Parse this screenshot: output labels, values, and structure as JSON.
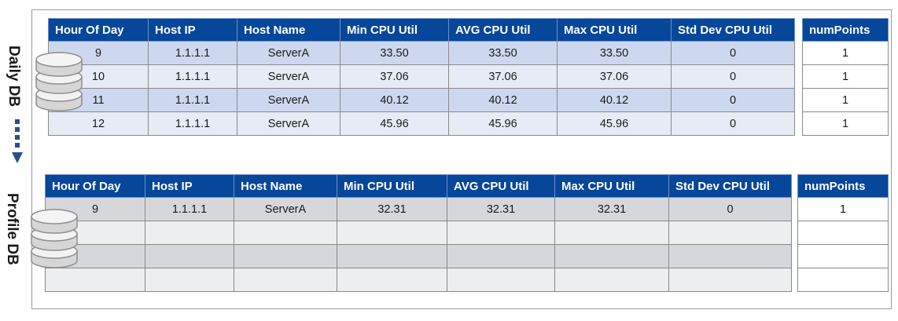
{
  "daily": {
    "side_label": "Daily DB",
    "columns": [
      "Hour Of Day",
      "Host IP",
      "Host Name",
      "Min CPU Util",
      "AVG CPU Util",
      "Max CPU Util",
      "Std Dev CPU Util"
    ],
    "extra_column": "numPoints",
    "rows": [
      {
        "hour": "9",
        "ip": "1.1.1.1",
        "name": "ServerA",
        "min": "33.50",
        "avg": "33.50",
        "max": "33.50",
        "std": "0",
        "num": "1"
      },
      {
        "hour": "10",
        "ip": "1.1.1.1",
        "name": "ServerA",
        "min": "37.06",
        "avg": "37.06",
        "max": "37.06",
        "std": "0",
        "num": "1"
      },
      {
        "hour": "11",
        "ip": "1.1.1.1",
        "name": "ServerA",
        "min": "40.12",
        "avg": "40.12",
        "max": "40.12",
        "std": "0",
        "num": "1"
      },
      {
        "hour": "12",
        "ip": "1.1.1.1",
        "name": "ServerA",
        "min": "45.96",
        "avg": "45.96",
        "max": "45.96",
        "std": "0",
        "num": "1"
      }
    ]
  },
  "profile": {
    "side_label": "Profile DB",
    "columns": [
      "Hour Of Day",
      "Host IP",
      "Host Name",
      "Min CPU Util",
      "AVG CPU Util",
      "Max CPU Util",
      "Std Dev CPU Util"
    ],
    "extra_column": "numPoints",
    "rows": [
      {
        "hour": "9",
        "ip": "1.1.1.1",
        "name": "ServerA",
        "min": "32.31",
        "avg": "32.31",
        "max": "32.31",
        "std": "0",
        "num": "1"
      },
      {
        "hour": "",
        "ip": "",
        "name": "",
        "min": "",
        "avg": "",
        "max": "",
        "std": "",
        "num": ""
      },
      {
        "hour": "",
        "ip": "",
        "name": "",
        "min": "",
        "avg": "",
        "max": "",
        "std": "",
        "num": ""
      },
      {
        "hour": "",
        "ip": "",
        "name": "",
        "min": "",
        "avg": "",
        "max": "",
        "std": "",
        "num": ""
      }
    ]
  },
  "icons": {
    "db": "database-cylinder-icon",
    "arrow": "dotted-down-arrow-icon"
  },
  "colors": {
    "header_bg": "#06479a",
    "header_text": "#ffffff",
    "daily_row_a": "#cdd8ee",
    "daily_row_b": "#e6ebf5",
    "profile_row_a": "#d5d7db",
    "profile_row_b": "#eceeef"
  }
}
